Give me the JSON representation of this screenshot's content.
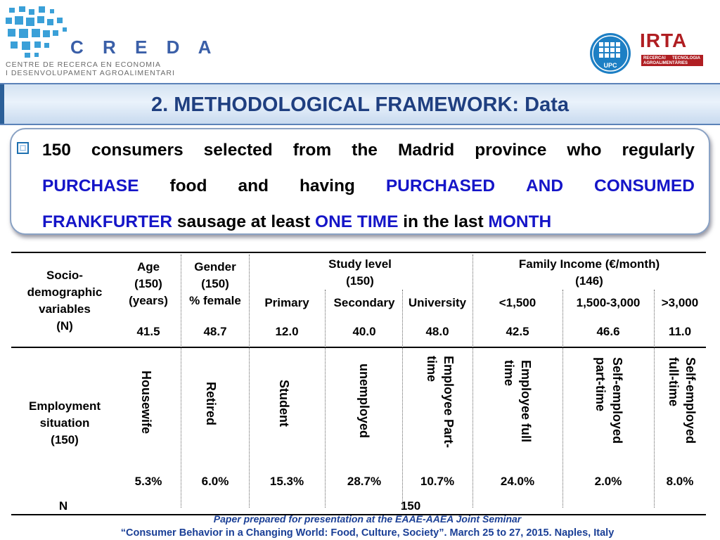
{
  "logos": {
    "creda_word": "C R E D A",
    "creda_line1": "CENTRE DE RECERCA EN ECONOMIA",
    "creda_line2": "I DESENVOLUPAMENT AGROALIMENTARI",
    "upc": "UPC",
    "irta": "IRTA",
    "irta_tag1": "RECERCA",
    "irta_tag2": "I",
    "irta_tag3": "TECNOLOGIA",
    "irta_tag4": "AGROALIMENTÀRIES"
  },
  "title": "2. METHODOLOGICAL FRAMEWORK: Data",
  "bullet": {
    "line1": [
      "150",
      "consumers",
      "selected",
      "from",
      "the",
      "Madrid",
      "province",
      "who",
      "regularly"
    ],
    "line2": [
      {
        "t": "PURCHASE",
        "blue": true
      },
      {
        "t": "food",
        "blue": false
      },
      {
        "t": "and",
        "blue": false
      },
      {
        "t": "having",
        "blue": false
      },
      {
        "t": "PURCHASED",
        "blue": true
      },
      {
        "t": "AND",
        "blue": true
      },
      {
        "t": "CONSUMED",
        "blue": true
      }
    ],
    "line3": [
      {
        "t": "FRANKFURTER",
        "blue": true
      },
      {
        "t": " sausage at least ",
        "blue": false
      },
      {
        "t": "ONE TIME",
        "blue": true
      },
      {
        "t": " in the last ",
        "blue": false
      },
      {
        "t": "MONTH",
        "blue": true
      }
    ]
  },
  "table": {
    "socio_label": [
      "Socio-",
      "demographic",
      "variables",
      "(N)"
    ],
    "age_header": [
      "Age",
      "(150)",
      "(years)"
    ],
    "gender_header": [
      "Gender",
      "(150)",
      "% female"
    ],
    "study_header": [
      "Study level",
      "(150)"
    ],
    "income_header": [
      "Family Income (€/month)",
      "(146)"
    ],
    "sub_headers": {
      "primary": "Primary",
      "secondary": "Secondary",
      "university": "University",
      "inc_low": "<1,500",
      "inc_mid": "1,500-3,000",
      "inc_high": ">3,000"
    },
    "socio_values": {
      "age": "41.5",
      "gender": "48.7",
      "primary": "12.0",
      "secondary": "40.0",
      "university": "48.0",
      "inc_low": "42.5",
      "inc_mid": "46.6",
      "inc_high": "11.0"
    },
    "employment_label": [
      "Employment",
      "situation",
      "(150)"
    ],
    "employment_categories": [
      {
        "label": "Housewife",
        "value": "5.3%"
      },
      {
        "label": "Retired",
        "value": "6.0%"
      },
      {
        "label": "Student",
        "value": "15.3%"
      },
      {
        "label": "unemployed",
        "value": "28.7%"
      },
      {
        "label": "Employee Part-time",
        "value": "10.7%"
      },
      {
        "label": "Employee full time",
        "value": "24.0%"
      },
      {
        "label": "Self-employed part-time",
        "value": "2.0%"
      },
      {
        "label": "Self-employed full-time",
        "value": "8.0%"
      }
    ],
    "n_label": "N",
    "n_value": "150"
  },
  "footer": {
    "line1": "Paper prepared for presentation at the EAAE-AAEA Joint Seminar",
    "line2": "“Consumer Behavior in a Changing World: Food, Culture, Society”. March 25 to 27, 2015. Naples, Italy"
  }
}
